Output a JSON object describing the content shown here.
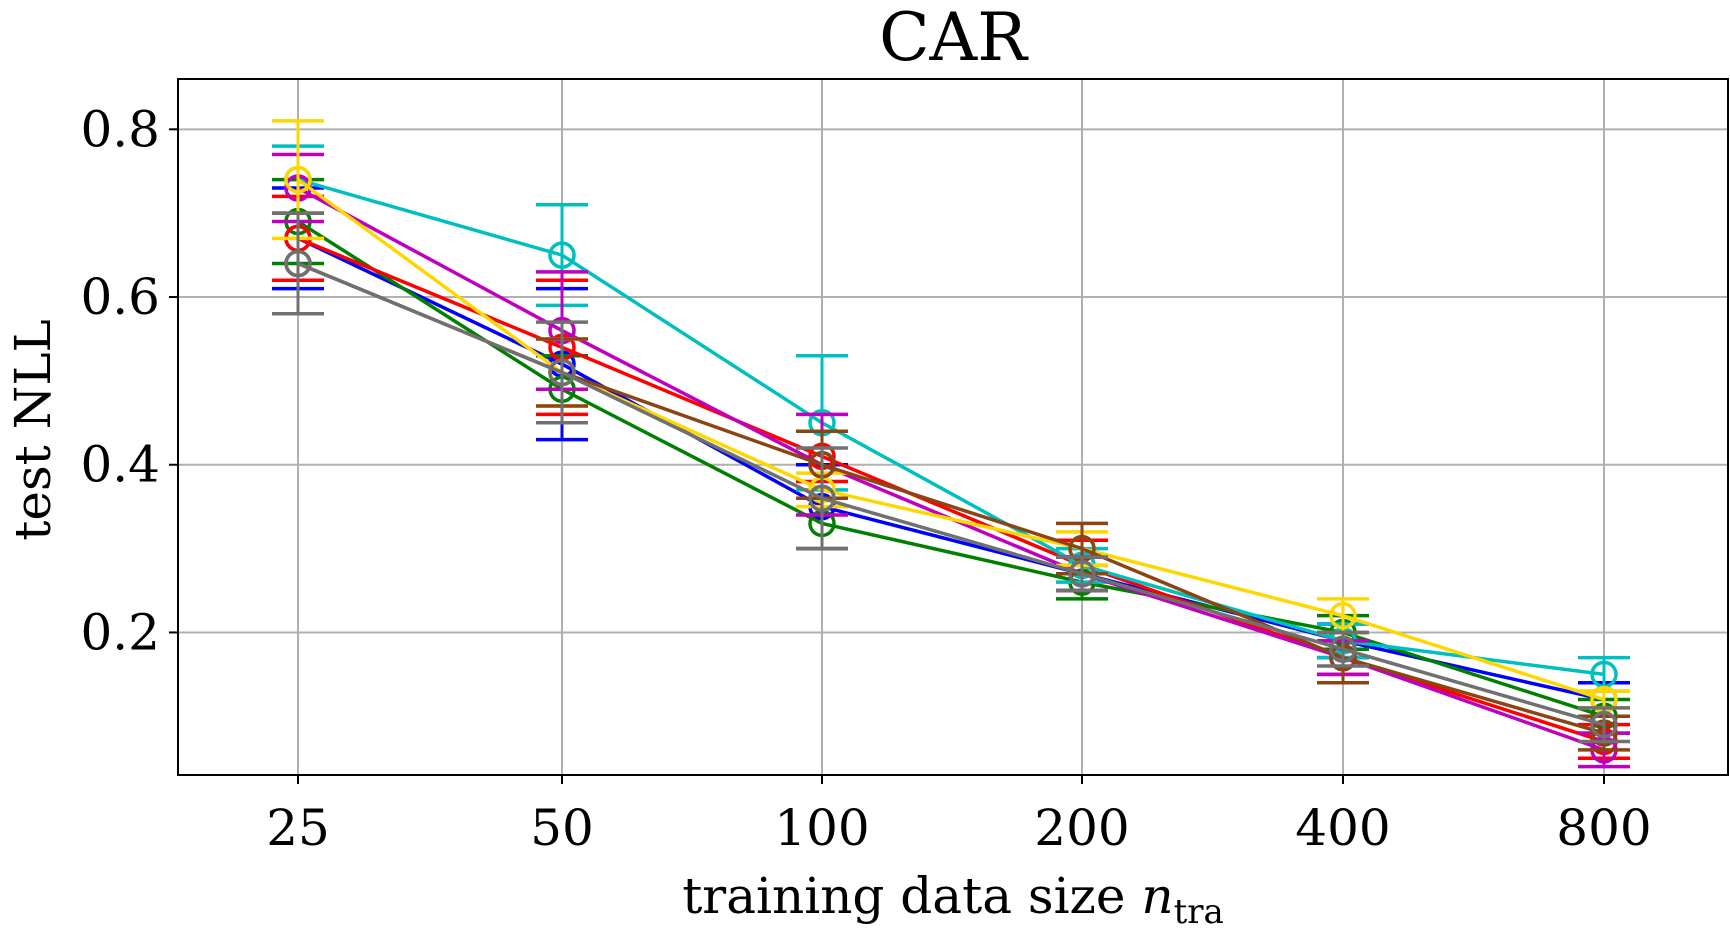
{
  "chart_data": {
    "type": "line",
    "title": "CAR",
    "xlabel": "training data size ",
    "xlabel_var": "n",
    "xlabel_sub": "tra",
    "ylabel": "test NLL",
    "categories": [
      "25",
      "50",
      "100",
      "200",
      "400",
      "800"
    ],
    "ylim": [
      0.03,
      0.86
    ],
    "yticks": [
      0.2,
      0.4,
      0.6,
      0.8
    ],
    "ytick_labels": [
      "0.2",
      "0.4",
      "0.6",
      "0.8"
    ],
    "grid": true,
    "series": [
      {
        "name": "blue",
        "color": "#0000ff",
        "marker": "circle",
        "values": [
          0.67,
          0.52,
          0.35,
          0.27,
          0.19,
          0.12
        ],
        "errors": [
          0.06,
          0.09,
          0.05,
          0.02,
          0.02,
          0.02
        ]
      },
      {
        "name": "green",
        "color": "#008000",
        "marker": "circle",
        "values": [
          0.69,
          0.49,
          0.33,
          0.26,
          0.2,
          0.1
        ],
        "errors": [
          0.05,
          0.04,
          0.03,
          0.02,
          0.02,
          0.02
        ]
      },
      {
        "name": "red",
        "color": "#ff0000",
        "marker": "circle",
        "values": [
          0.67,
          0.54,
          0.41,
          0.28,
          0.17,
          0.07
        ],
        "errors": [
          0.05,
          0.08,
          0.03,
          0.03,
          0.02,
          0.02
        ]
      },
      {
        "name": "cyan",
        "color": "#00bfbf",
        "marker": "circle",
        "values": [
          0.74,
          0.65,
          0.45,
          0.28,
          0.19,
          0.15
        ],
        "errors": [
          0.04,
          0.06,
          0.08,
          0.02,
          0.02,
          0.02
        ]
      },
      {
        "name": "magenta",
        "color": "#bf00bf",
        "marker": "circle",
        "values": [
          0.73,
          0.56,
          0.4,
          0.27,
          0.17,
          0.06
        ],
        "errors": [
          0.04,
          0.07,
          0.06,
          0.02,
          0.02,
          0.02
        ]
      },
      {
        "name": "gold",
        "color": "#ffd700",
        "marker": "circle",
        "values": [
          0.74,
          0.51,
          0.37,
          0.3,
          0.22,
          0.12
        ],
        "errors": [
          0.07,
          0.04,
          0.02,
          0.02,
          0.02,
          0.01
        ]
      },
      {
        "name": "brown",
        "color": "#8b4513",
        "marker": "circle",
        "values": [
          0.64,
          0.51,
          0.4,
          0.3,
          0.17,
          0.08
        ],
        "errors": [
          0.06,
          0.04,
          0.04,
          0.03,
          0.03,
          0.02
        ]
      },
      {
        "name": "gray",
        "color": "#707070",
        "marker": "circle",
        "values": [
          0.64,
          0.51,
          0.36,
          0.27,
          0.18,
          0.09
        ],
        "errors": [
          0.06,
          0.06,
          0.06,
          0.02,
          0.02,
          0.02
        ]
      }
    ]
  }
}
